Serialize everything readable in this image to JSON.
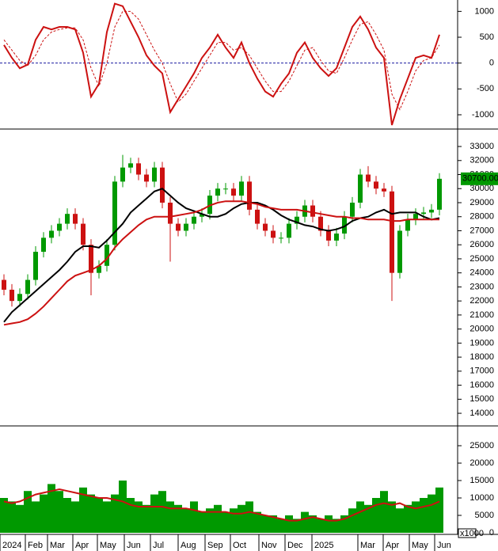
{
  "chart_data": [
    {
      "type": "line",
      "xlim": [
        0,
        56
      ],
      "ylim": [
        -1230,
        1220
      ],
      "yticks": [
        1000,
        500,
        0,
        -500,
        -1000
      ],
      "zero_line": true,
      "zero_line_color": "#1a1aa0",
      "series": [
        {
          "color": "#cc1111",
          "dashed": false,
          "values": [
            350,
            100,
            -100,
            -30,
            450,
            700,
            650,
            700,
            700,
            650,
            200,
            -650,
            -400,
            600,
            1150,
            1100,
            800,
            500,
            150,
            -50,
            -200,
            -950,
            -700,
            -450,
            -200,
            100,
            300,
            550,
            300,
            100,
            400,
            0,
            -300,
            -550,
            -650,
            -400,
            -200,
            200,
            400,
            100,
            -100,
            -250,
            -100,
            300,
            700,
            900,
            650,
            300,
            100,
            -1200,
            -700,
            -300,
            100,
            150,
            100,
            550
          ]
        },
        {
          "color": "#cc1111",
          "dashed": true,
          "values": [
            450,
            250,
            50,
            -50,
            150,
            450,
            600,
            650,
            680,
            680,
            450,
            -100,
            -450,
            0,
            700,
            1000,
            1000,
            850,
            550,
            250,
            0,
            -400,
            -750,
            -600,
            -350,
            -100,
            150,
            400,
            400,
            250,
            300,
            150,
            -100,
            -350,
            -550,
            -550,
            -350,
            -50,
            250,
            300,
            50,
            -150,
            -200,
            100,
            450,
            750,
            800,
            550,
            250,
            -600,
            -900,
            -550,
            -150,
            50,
            100,
            350
          ]
        }
      ]
    },
    {
      "type": "candlestick",
      "xlim": [
        0,
        56
      ],
      "ylim": [
        13270,
        34130
      ],
      "yticks": [
        33000,
        32000,
        31000,
        30000,
        29000,
        28000,
        27000,
        26000,
        25000,
        24000,
        23000,
        22000,
        21000,
        20000,
        19000,
        18000,
        17000,
        16000,
        15000,
        14000
      ],
      "up_color": "#009900",
      "down_color": "#cc1111",
      "last_close_label": "30700.00",
      "open": [
        23500,
        22800,
        22000,
        22500,
        23500,
        25500,
        26500,
        27000,
        27500,
        28200,
        27500,
        26000,
        24000,
        24500,
        26000,
        30500,
        31500,
        31800,
        31000,
        30500,
        31500,
        29000,
        27500,
        27000,
        27500,
        28000,
        28200,
        29500,
        30000,
        30000,
        29500,
        30500,
        28500,
        27500,
        27000,
        26500,
        26500,
        27500,
        28000,
        28800,
        28000,
        27000,
        26300,
        26800,
        28000,
        29000,
        31000,
        30500,
        30000,
        29800,
        24000,
        27000,
        27800,
        28200,
        28300,
        28500
      ],
      "high": [
        23900,
        23200,
        22900,
        23900,
        25900,
        26900,
        27400,
        27900,
        28600,
        28600,
        27900,
        26400,
        24900,
        26400,
        30900,
        32400,
        32200,
        32200,
        31400,
        31900,
        31900,
        29400,
        27900,
        27900,
        28400,
        28600,
        29900,
        30400,
        30400,
        30400,
        30900,
        30900,
        28900,
        27900,
        27400,
        26900,
        27900,
        28400,
        29200,
        29200,
        28400,
        27400,
        27200,
        28400,
        29400,
        31400,
        31600,
        30900,
        30400,
        30200,
        27400,
        28200,
        28600,
        28700,
        28900,
        31100
      ],
      "low": [
        22400,
        21600,
        21600,
        22100,
        23100,
        25100,
        26100,
        26600,
        27100,
        27100,
        25600,
        22400,
        23600,
        24100,
        25600,
        30100,
        31100,
        30600,
        30100,
        30100,
        28600,
        24800,
        26600,
        26600,
        27100,
        27600,
        27800,
        29100,
        29600,
        29100,
        29100,
        28100,
        27100,
        26600,
        26100,
        26100,
        26100,
        27100,
        27600,
        27600,
        26600,
        25900,
        25900,
        26400,
        27600,
        28600,
        30100,
        29600,
        29400,
        22000,
        23600,
        26600,
        27400,
        27800,
        27900,
        28100
      ],
      "close": [
        22800,
        22000,
        22500,
        23500,
        25500,
        26500,
        27000,
        27500,
        28200,
        27500,
        26000,
        24000,
        24500,
        26000,
        30500,
        31500,
        31800,
        31000,
        30500,
        31500,
        29000,
        27500,
        27000,
        27500,
        28000,
        28200,
        29500,
        30000,
        30000,
        29500,
        30500,
        28500,
        27500,
        27000,
        26500,
        26500,
        27500,
        28000,
        28800,
        28000,
        27000,
        26300,
        26800,
        28000,
        29000,
        31000,
        30500,
        30000,
        29800,
        24000,
        27000,
        27800,
        28200,
        28300,
        28500,
        30700
      ],
      "series": [
        {
          "color": "#000000",
          "values": [
            20500,
            21200,
            21700,
            22200,
            22700,
            23200,
            23700,
            24200,
            24800,
            25500,
            25900,
            25900,
            25800,
            26300,
            26900,
            27500,
            28300,
            28800,
            29300,
            29800,
            30000,
            29500,
            29000,
            28600,
            28400,
            28200,
            28000,
            28000,
            28200,
            28600,
            28900,
            29000,
            29000,
            28800,
            28500,
            28100,
            27800,
            27600,
            27400,
            27300,
            27100,
            27000,
            27100,
            27300,
            27700,
            27900,
            28000,
            28300,
            28500,
            28200,
            28300,
            28300,
            28300,
            28000,
            27800,
            27900
          ]
        },
        {
          "color": "#cc1111",
          "values": [
            20300,
            20400,
            20500,
            20700,
            21100,
            21600,
            22200,
            22800,
            23400,
            23800,
            24000,
            24200,
            24500,
            25000,
            25800,
            26400,
            26900,
            27400,
            27800,
            28000,
            28000,
            28000,
            28100,
            28200,
            28300,
            28500,
            28800,
            29000,
            29100,
            29100,
            29100,
            29000,
            28900,
            28700,
            28600,
            28500,
            28500,
            28500,
            28400,
            28300,
            28200,
            28100,
            28000,
            28000,
            27900,
            27900,
            27800,
            27800,
            27800,
            27700,
            27700,
            27800,
            27800,
            27800,
            27800,
            27800
          ]
        }
      ]
    },
    {
      "type": "bar",
      "xlim": [
        0,
        56
      ],
      "ylim": [
        0,
        30230
      ],
      "yticks": [
        25000,
        20000,
        15000,
        10000,
        5000,
        0
      ],
      "unit_label": "x1000",
      "color": "#009900",
      "values": [
        10000,
        9000,
        8000,
        12000,
        9000,
        11000,
        14000,
        12000,
        10000,
        9000,
        13000,
        11000,
        10000,
        9000,
        11000,
        15000,
        10000,
        9000,
        8000,
        11000,
        12000,
        9000,
        8000,
        7000,
        9000,
        6000,
        7000,
        8000,
        6000,
        7000,
        8000,
        9000,
        6000,
        5000,
        5000,
        4000,
        5000,
        4000,
        6000,
        5000,
        4000,
        5000,
        4000,
        5000,
        7000,
        9000,
        8000,
        10000,
        12000,
        9000,
        7000,
        8000,
        9000,
        10000,
        11000,
        13000
      ],
      "series": [
        {
          "color": "#cc1111",
          "values": [
            9000,
            8500,
            9000,
            10000,
            11000,
            11500,
            12000,
            12500,
            12000,
            11500,
            11000,
            10500,
            10000,
            10000,
            9500,
            9000,
            8000,
            7500,
            7500,
            7500,
            7500,
            7000,
            7000,
            7000,
            6500,
            6000,
            6000,
            6000,
            6000,
            5500,
            5500,
            6000,
            5500,
            5000,
            4500,
            4000,
            3500,
            3500,
            4000,
            4500,
            4000,
            3500,
            3500,
            4000,
            5000,
            6000,
            7000,
            8000,
            8500,
            8000,
            8500,
            7500,
            7000,
            7500,
            8000,
            9000
          ]
        }
      ],
      "xticks": [
        {
          "value": 0,
          "label": "2024"
        },
        {
          "value": 3.2,
          "label": "Feb"
        },
        {
          "value": 6,
          "label": "Mar"
        },
        {
          "value": 9.2,
          "label": "Apr"
        },
        {
          "value": 12.3,
          "label": "May"
        },
        {
          "value": 15.7,
          "label": "Jun"
        },
        {
          "value": 19,
          "label": "Jul"
        },
        {
          "value": 22.5,
          "label": "Aug"
        },
        {
          "value": 25.9,
          "label": "Sep"
        },
        {
          "value": 29.1,
          "label": "Oct"
        },
        {
          "value": 32.7,
          "label": "Nov"
        },
        {
          "value": 36,
          "label": "Dec"
        },
        {
          "value": 39.4,
          "label": "2025"
        },
        {
          "value": 45.2,
          "label": "Mar"
        },
        {
          "value": 48.4,
          "label": "Apr"
        },
        {
          "value": 51.7,
          "label": "May"
        },
        {
          "value": 54.9,
          "label": "Jun"
        }
      ]
    }
  ]
}
